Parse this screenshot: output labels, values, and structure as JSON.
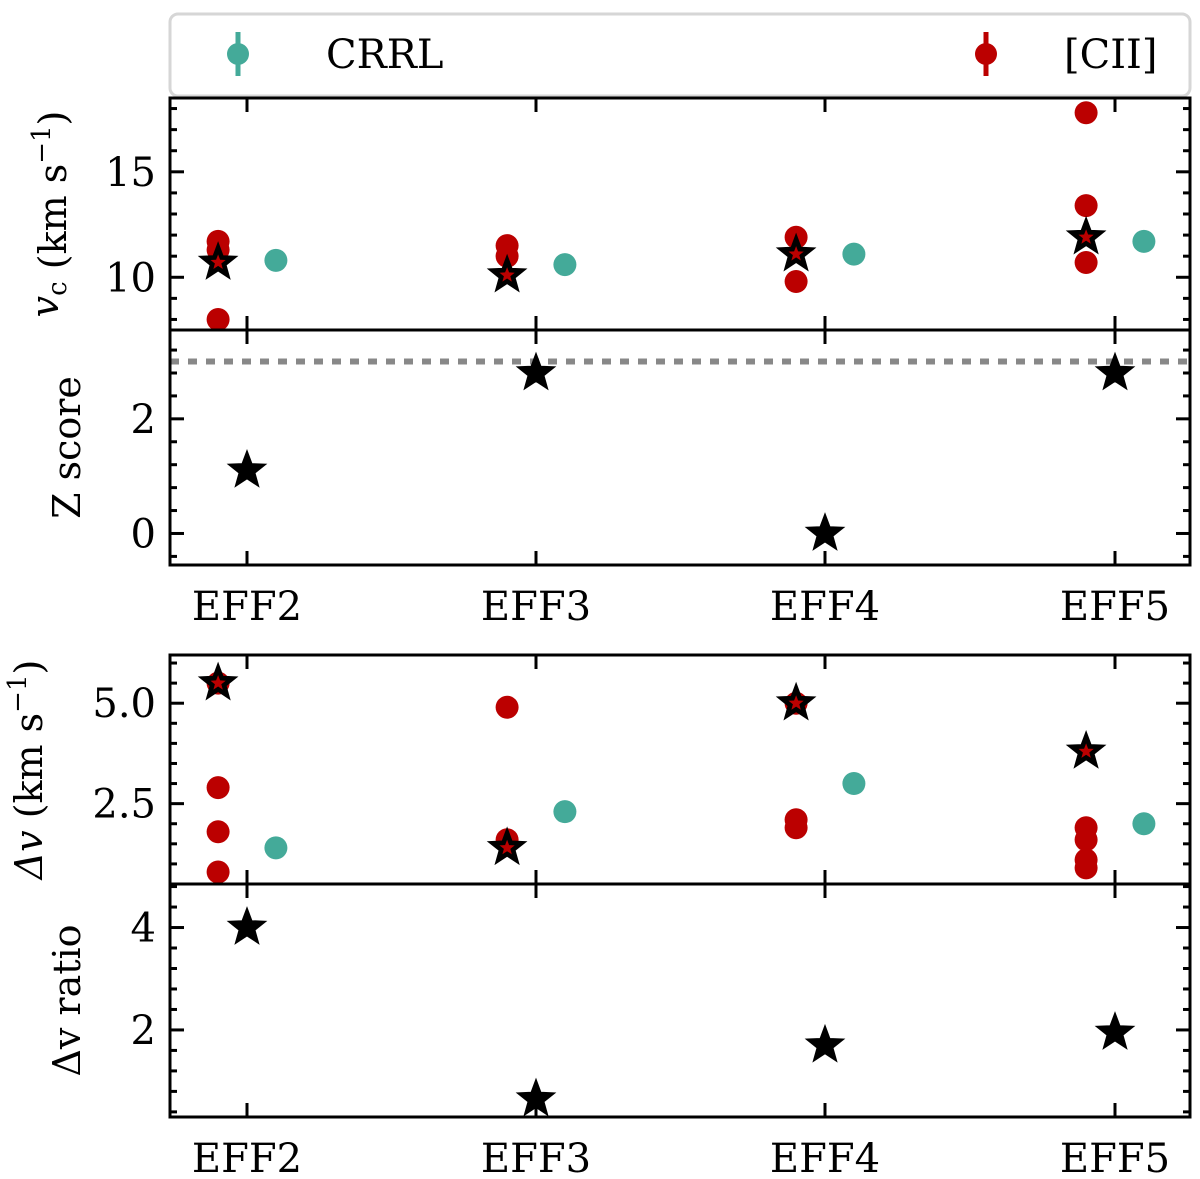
{
  "legend": {
    "crrl_label": "CRRL",
    "cii_label": "[CII]"
  },
  "colors": {
    "crrl": "#44aa99",
    "cii": "#bb0000",
    "star": "#000000",
    "threshold": "#888888"
  },
  "chart_data": [
    {
      "id": "vc",
      "type": "scatter",
      "ylabel": "v_c (km s^-1)",
      "ylabel_parts": {
        "var": "v",
        "sub": "c",
        "unit": " (km s",
        "sup": "−1",
        "close": ")"
      },
      "ylim": [
        7.5,
        18.5
      ],
      "yticks": [
        10,
        15
      ],
      "categories": [
        "EFF2",
        "EFF3",
        "EFF4",
        "EFF5"
      ],
      "series": [
        {
          "name": "[CII]",
          "offset": -0.1,
          "points": [
            [
              0,
              11.7
            ],
            [
              0,
              11.3
            ],
            [
              0,
              8.0
            ],
            [
              1,
              11.5
            ],
            [
              1,
              11.0
            ],
            [
              2,
              11.9
            ],
            [
              2,
              9.8
            ],
            [
              3,
              17.8
            ],
            [
              3,
              13.4
            ],
            [
              3,
              10.7
            ]
          ]
        },
        {
          "name": "CRRL",
          "offset": 0.1,
          "points": [
            [
              0,
              10.8
            ],
            [
              1,
              10.6
            ],
            [
              2,
              11.1
            ],
            [
              3,
              11.7
            ]
          ]
        },
        {
          "name": "star",
          "offset": -0.1,
          "points": [
            [
              0,
              10.7
            ],
            [
              1,
              10.1
            ],
            [
              2,
              11.1
            ],
            [
              3,
              11.9
            ]
          ]
        }
      ]
    },
    {
      "id": "zscore",
      "type": "scatter",
      "ylabel": "Z score",
      "ylim": [
        -0.55,
        3.55
      ],
      "yticks": [
        0,
        2
      ],
      "threshold": 3,
      "categories": [
        "EFF2",
        "EFF3",
        "EFF4",
        "EFF5"
      ],
      "tick_labels": [
        "EFF2",
        "EFF3",
        "EFF4",
        "EFF5"
      ],
      "series": [
        {
          "name": "star",
          "offset": 0,
          "points": [
            [
              0,
              1.1
            ],
            [
              1,
              2.8
            ],
            [
              2,
              0.0
            ],
            [
              3,
              2.8
            ]
          ]
        }
      ]
    },
    {
      "id": "dv",
      "type": "scatter",
      "ylabel": "Δv (km s^-1)",
      "ylabel_parts": {
        "var": "Δv",
        "unit": " (km s",
        "sup": "−1",
        "close": ")"
      },
      "ylim": [
        0.5,
        6.2
      ],
      "yticks": [
        2.5,
        5.0
      ],
      "ytick_labels": [
        "2.5",
        "5.0"
      ],
      "categories": [
        "EFF2",
        "EFF3",
        "EFF4",
        "EFF5"
      ],
      "series": [
        {
          "name": "[CII]",
          "offset": -0.1,
          "points": [
            [
              0,
              5.5
            ],
            [
              0,
              2.9
            ],
            [
              0,
              1.8
            ],
            [
              0,
              0.8
            ],
            [
              1,
              4.9
            ],
            [
              1,
              1.6
            ],
            [
              2,
              5.0
            ],
            [
              2,
              2.1
            ],
            [
              2,
              1.9
            ],
            [
              3,
              1.9
            ],
            [
              3,
              1.6
            ],
            [
              3,
              1.1
            ],
            [
              3,
              0.9
            ]
          ]
        },
        {
          "name": "CRRL",
          "offset": 0.1,
          "points": [
            [
              0,
              1.4
            ],
            [
              1,
              2.3
            ],
            [
              2,
              3.0
            ],
            [
              3,
              2.0
            ]
          ]
        },
        {
          "name": "star",
          "offset": -0.1,
          "points": [
            [
              0,
              5.5
            ],
            [
              1,
              1.4
            ],
            [
              2,
              5.0
            ],
            [
              3,
              3.8
            ]
          ]
        }
      ]
    },
    {
      "id": "dvratio",
      "type": "scatter",
      "ylabel": "Δv ratio",
      "ylim": [
        0.3,
        4.85
      ],
      "yticks": [
        2,
        4
      ],
      "categories": [
        "EFF2",
        "EFF3",
        "EFF4",
        "EFF5"
      ],
      "tick_labels": [
        "EFF2",
        "EFF3",
        "EFF4",
        "EFF5"
      ],
      "series": [
        {
          "name": "star",
          "offset": 0,
          "points": [
            [
              0,
              4.0
            ],
            [
              1,
              0.65
            ],
            [
              2,
              1.7
            ],
            [
              3,
              1.95
            ]
          ]
        }
      ]
    }
  ]
}
